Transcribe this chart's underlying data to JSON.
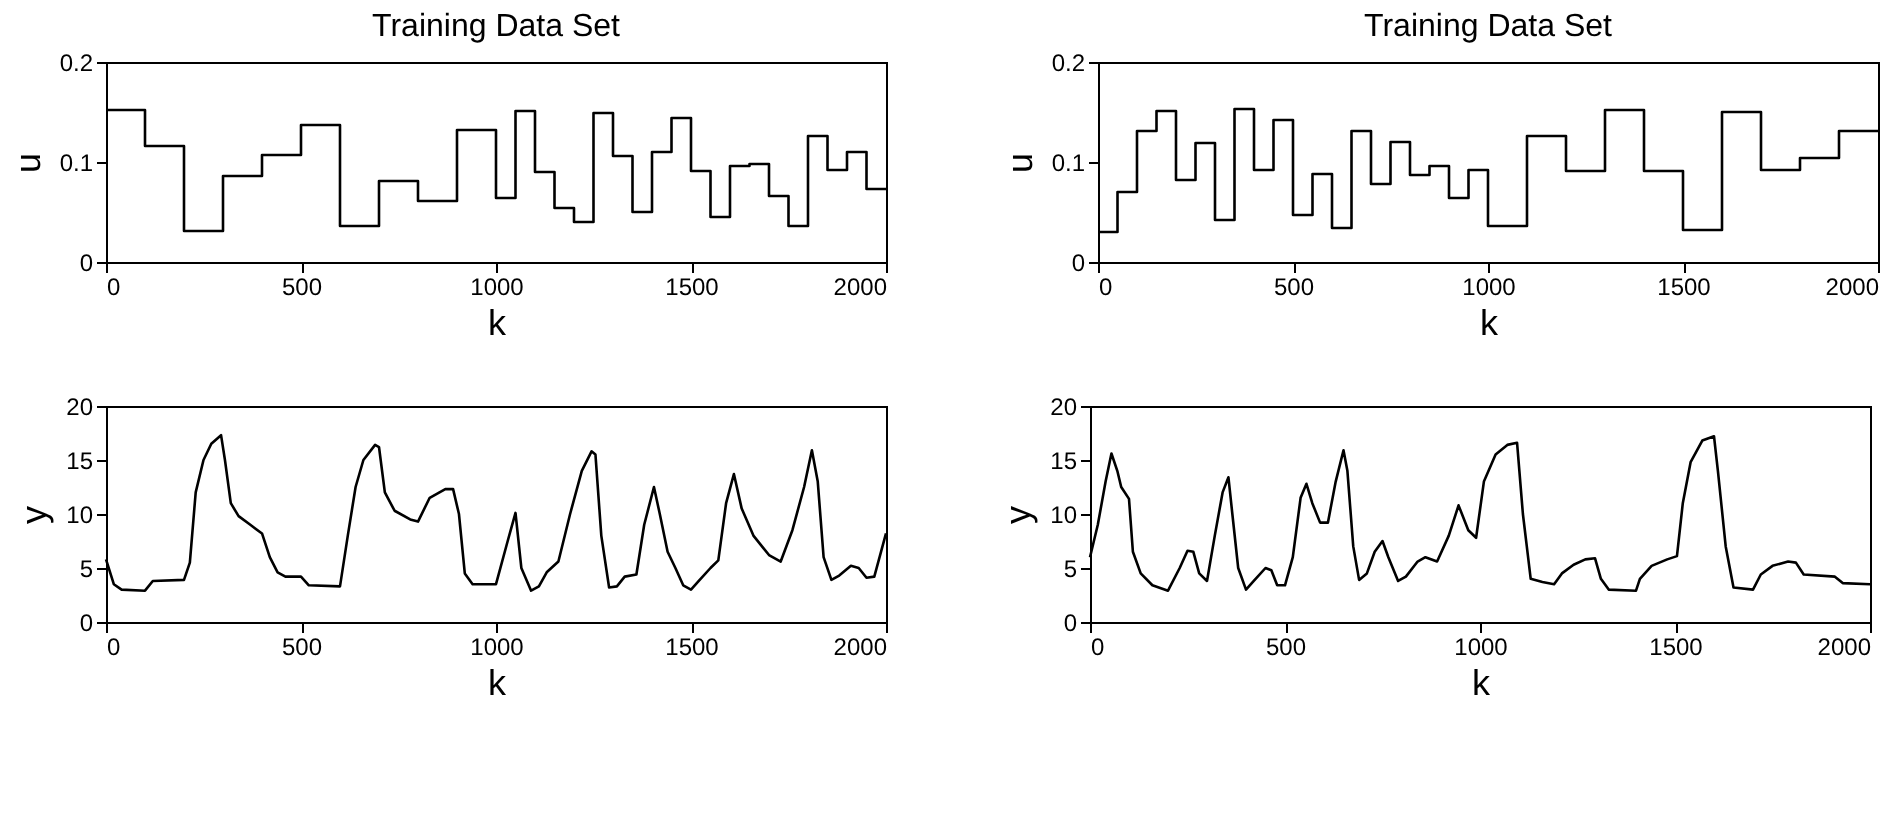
{
  "chart_data": [
    {
      "type": "step",
      "title": "Training Data Set",
      "xlabel": "k",
      "ylabel": "u",
      "color": "#000000",
      "xlim": [
        0,
        2000
      ],
      "ylim": [
        0,
        0.2
      ],
      "xticks": [
        0,
        500,
        1000,
        1500,
        2000
      ],
      "yticks": [
        0,
        0.1,
        0.2
      ],
      "x": [
        0,
        100,
        200,
        300,
        400,
        500,
        600,
        700,
        800,
        900,
        1000,
        1050,
        1100,
        1150,
        1200,
        1250,
        1300,
        1350,
        1400,
        1450,
        1500,
        1550,
        1600,
        1650,
        1700,
        1750,
        1800,
        1850,
        1900,
        1950,
        2000
      ],
      "values": [
        0.152,
        0.116,
        0.031,
        0.086,
        0.107,
        0.137,
        0.036,
        0.081,
        0.061,
        0.132,
        0.064,
        0.151,
        0.09,
        0.054,
        0.04,
        0.149,
        0.106,
        0.05,
        0.11,
        0.144,
        0.091,
        0.045,
        0.096,
        0.098,
        0.066,
        0.036,
        0.126,
        0.092,
        0.11,
        0.073,
        0.073
      ]
    },
    {
      "type": "step",
      "title": "Training Data Set",
      "xlabel": "k",
      "ylabel": "u",
      "color": "#000000",
      "xlim": [
        0,
        2000
      ],
      "ylim": [
        0,
        0.2
      ],
      "xticks": [
        0,
        500,
        1000,
        1500,
        2000
      ],
      "yticks": [
        0,
        0.1,
        0.2
      ],
      "x": [
        0,
        50,
        100,
        150,
        200,
        250,
        300,
        350,
        400,
        450,
        500,
        550,
        600,
        650,
        700,
        750,
        800,
        850,
        900,
        950,
        1000,
        1100,
        1200,
        1300,
        1400,
        1500,
        1600,
        1700,
        1800,
        1900,
        2000
      ],
      "values": [
        0.03,
        0.07,
        0.131,
        0.151,
        0.082,
        0.119,
        0.042,
        0.153,
        0.092,
        0.142,
        0.047,
        0.088,
        0.034,
        0.131,
        0.078,
        0.12,
        0.087,
        0.096,
        0.064,
        0.092,
        0.036,
        0.126,
        0.091,
        0.152,
        0.091,
        0.032,
        0.15,
        0.092,
        0.104,
        0.131,
        0.131
      ]
    },
    {
      "type": "line",
      "xlabel": "k",
      "ylabel": "y",
      "color": "#000000",
      "xlim": [
        0,
        2000
      ],
      "ylim": [
        0,
        20
      ],
      "xticks": [
        0,
        500,
        1000,
        1500,
        2000
      ],
      "yticks": [
        0,
        5,
        10,
        15,
        20
      ],
      "x": [
        0,
        20,
        40,
        100,
        120,
        200,
        215,
        230,
        250,
        270,
        295,
        305,
        320,
        340,
        370,
        400,
        420,
        440,
        460,
        500,
        520,
        600,
        620,
        640,
        660,
        690,
        700,
        715,
        740,
        780,
        800,
        830,
        870,
        890,
        905,
        920,
        940,
        1000,
        1030,
        1050,
        1065,
        1090,
        1110,
        1130,
        1160,
        1190,
        1220,
        1245,
        1255,
        1270,
        1290,
        1310,
        1330,
        1360,
        1380,
        1405,
        1420,
        1440,
        1460,
        1480,
        1500,
        1520,
        1550,
        1570,
        1590,
        1610,
        1630,
        1660,
        1700,
        1730,
        1760,
        1790,
        1810,
        1825,
        1840,
        1860,
        1880,
        1910,
        1930,
        1950,
        1970,
        2000
      ],
      "values": [
        5.8,
        3.5,
        3.0,
        2.9,
        3.8,
        3.9,
        5.5,
        12,
        15,
        16.5,
        17.3,
        15,
        11,
        9.8,
        9,
        8.2,
        6,
        4.6,
        4.2,
        4.2,
        3.4,
        3.3,
        8,
        12.5,
        15,
        16.4,
        16.2,
        12,
        10.3,
        9.5,
        9.3,
        11.5,
        12.3,
        12.3,
        10,
        4.5,
        3.5,
        3.5,
        7.5,
        10.1,
        5,
        2.9,
        3.3,
        4.6,
        5.6,
        10,
        14,
        15.8,
        15.5,
        8,
        3.2,
        3.3,
        4.2,
        4.4,
        9,
        12.5,
        10,
        6.5,
        5,
        3.4,
        3.0,
        3.8,
        5,
        5.7,
        11,
        13.7,
        10.5,
        8,
        6.2,
        5.6,
        8.5,
        12.5,
        15.9,
        13,
        6,
        3.9,
        4.3,
        5.2,
        5,
        4.1,
        4.2,
        8.2
      ]
    },
    {
      "type": "line",
      "xlabel": "k",
      "ylabel": "y",
      "color": "#000000",
      "xlim": [
        0,
        2000
      ],
      "ylim": [
        0,
        20
      ],
      "xticks": [
        0,
        500,
        1000,
        1500,
        2000
      ],
      "yticks": [
        0,
        5,
        10,
        15,
        20
      ],
      "x": [
        0,
        20,
        40,
        55,
        70,
        80,
        100,
        110,
        130,
        160,
        200,
        230,
        250,
        265,
        280,
        300,
        320,
        340,
        355,
        365,
        380,
        400,
        420,
        450,
        465,
        480,
        500,
        520,
        540,
        555,
        570,
        590,
        610,
        630,
        650,
        660,
        675,
        690,
        710,
        730,
        750,
        765,
        790,
        810,
        840,
        860,
        890,
        920,
        945,
        970,
        990,
        1010,
        1040,
        1070,
        1095,
        1110,
        1130,
        1160,
        1190,
        1210,
        1240,
        1270,
        1295,
        1310,
        1330,
        1400,
        1410,
        1440,
        1480,
        1505,
        1520,
        1540,
        1570,
        1600,
        1610,
        1630,
        1650,
        1700,
        1720,
        1750,
        1790,
        1810,
        1830,
        1910,
        1930,
        2000
      ],
      "values": [
        6,
        9,
        13,
        15.6,
        14,
        12.5,
        11.4,
        6.5,
        4.5,
        3.4,
        2.9,
        5,
        6.6,
        6.5,
        4.5,
        3.8,
        8,
        12,
        13.4,
        10,
        5,
        3,
        3.8,
        5,
        4.8,
        3.4,
        3.4,
        6,
        11.5,
        12.8,
        11,
        9.2,
        9.2,
        13,
        15.9,
        14,
        7,
        3.9,
        4.5,
        6.5,
        7.5,
        6,
        3.8,
        4.2,
        5.6,
        6,
        5.6,
        8,
        10.8,
        8.5,
        7.8,
        13,
        15.5,
        16.4,
        16.6,
        10,
        4,
        3.7,
        3.5,
        4.5,
        5.3,
        5.8,
        5.9,
        4,
        3,
        2.9,
        4,
        5.2,
        5.8,
        6.1,
        11,
        14.8,
        16.8,
        17.2,
        14,
        7,
        3.2,
        3,
        4.4,
        5.2,
        5.6,
        5.5,
        4.4,
        4.2,
        3.6,
        3.5
      ]
    }
  ]
}
